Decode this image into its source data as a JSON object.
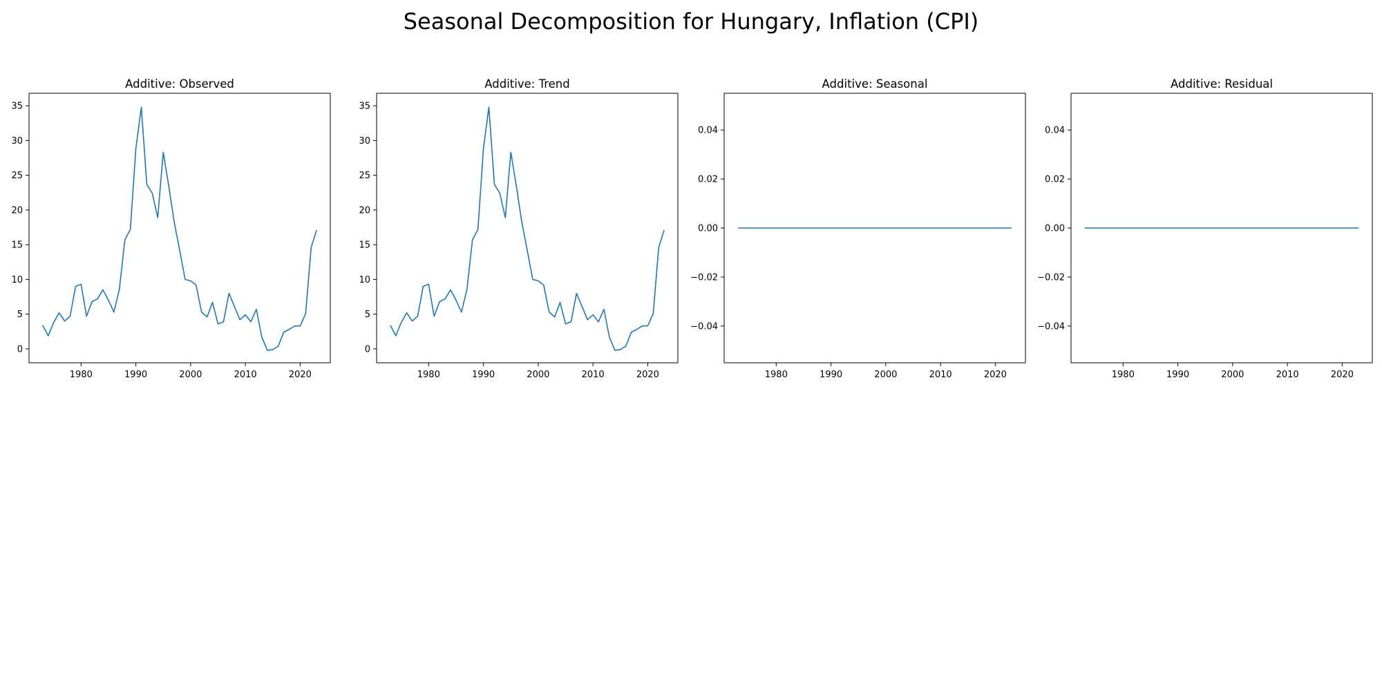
{
  "title": "Seasonal Decomposition for Hungary, Inflation (CPI)",
  "colors": {
    "line": "#1f77b4"
  },
  "chart_data": [
    {
      "type": "line",
      "title": "Additive: Observed",
      "xlim": [
        1970.5,
        2025.5
      ],
      "ylim": [
        -2,
        36.8
      ],
      "xticks": [
        1980,
        1990,
        2000,
        2010,
        2020
      ],
      "yticks": [
        0,
        5,
        10,
        15,
        20,
        25,
        30,
        35
      ],
      "ytick_labels": [
        "0",
        "5",
        "10",
        "15",
        "20",
        "25",
        "30",
        "35"
      ],
      "grid": false,
      "series": [
        {
          "x": [
            1973,
            1974,
            1975,
            1976,
            1977,
            1978,
            1979,
            1980,
            1981,
            1982,
            1983,
            1984,
            1985,
            1986,
            1987,
            1988,
            1989,
            1990,
            1991,
            1992,
            1993,
            1994,
            1995,
            1996,
            1997,
            1998,
            1999,
            2000,
            2001,
            2002,
            2003,
            2004,
            2005,
            2006,
            2007,
            2008,
            2009,
            2010,
            2011,
            2012,
            2013,
            2014,
            2015,
            2016,
            2017,
            2018,
            2019,
            2020,
            2021,
            2022,
            2023
          ],
          "y": [
            3.4,
            1.9,
            3.8,
            5.2,
            4.0,
            4.7,
            9.0,
            9.3,
            4.7,
            6.8,
            7.2,
            8.5,
            7.0,
            5.3,
            8.6,
            15.7,
            17.2,
            28.8,
            34.8,
            23.7,
            22.4,
            18.9,
            28.3,
            23.5,
            18.3,
            14.2,
            10.0,
            9.8,
            9.2,
            5.3,
            4.6,
            6.7,
            3.6,
            3.9,
            8.0,
            6.1,
            4.2,
            4.9,
            3.9,
            5.7,
            1.7,
            -0.2,
            -0.1,
            0.4,
            2.4,
            2.8,
            3.3,
            3.3,
            5.1,
            14.6,
            17.1
          ]
        }
      ]
    },
    {
      "type": "line",
      "title": "Additive: Trend",
      "xlim": [
        1970.5,
        2025.5
      ],
      "ylim": [
        -2,
        36.8
      ],
      "xticks": [
        1980,
        1990,
        2000,
        2010,
        2020
      ],
      "yticks": [
        0,
        5,
        10,
        15,
        20,
        25,
        30,
        35
      ],
      "ytick_labels": [
        "0",
        "5",
        "10",
        "15",
        "20",
        "25",
        "30",
        "35"
      ],
      "grid": false,
      "series": [
        {
          "x": [
            1973,
            1974,
            1975,
            1976,
            1977,
            1978,
            1979,
            1980,
            1981,
            1982,
            1983,
            1984,
            1985,
            1986,
            1987,
            1988,
            1989,
            1990,
            1991,
            1992,
            1993,
            1994,
            1995,
            1996,
            1997,
            1998,
            1999,
            2000,
            2001,
            2002,
            2003,
            2004,
            2005,
            2006,
            2007,
            2008,
            2009,
            2010,
            2011,
            2012,
            2013,
            2014,
            2015,
            2016,
            2017,
            2018,
            2019,
            2020,
            2021,
            2022,
            2023
          ],
          "y": [
            3.4,
            1.9,
            3.8,
            5.2,
            4.0,
            4.7,
            9.0,
            9.3,
            4.7,
            6.8,
            7.2,
            8.5,
            7.0,
            5.3,
            8.6,
            15.7,
            17.2,
            28.8,
            34.8,
            23.7,
            22.4,
            18.9,
            28.3,
            23.5,
            18.3,
            14.2,
            10.0,
            9.8,
            9.2,
            5.3,
            4.6,
            6.7,
            3.6,
            3.9,
            8.0,
            6.1,
            4.2,
            4.9,
            3.9,
            5.7,
            1.7,
            -0.2,
            -0.1,
            0.4,
            2.4,
            2.8,
            3.3,
            3.3,
            5.1,
            14.6,
            17.1
          ]
        }
      ]
    },
    {
      "type": "line",
      "title": "Additive: Seasonal",
      "xlim": [
        1970.5,
        2025.5
      ],
      "ylim": [
        -0.055,
        0.055
      ],
      "xticks": [
        1980,
        1990,
        2000,
        2010,
        2020
      ],
      "xtick_labels": [
        "1980",
        "1990",
        "2000",
        "2010",
        "2020"
      ],
      "yticks": [
        -0.04,
        -0.02,
        0.0,
        0.02,
        0.04
      ],
      "ytick_labels": [
        "−0.04",
        "−0.02",
        "0.00",
        "0.02",
        "0.04"
      ],
      "grid": false,
      "series": [
        {
          "x": [
            1973,
            2023
          ],
          "y": [
            0,
            0
          ]
        }
      ]
    },
    {
      "type": "line",
      "title": "Additive: Residual",
      "xlim": [
        1970.5,
        2025.5
      ],
      "ylim": [
        -0.055,
        0.055
      ],
      "xticks": [
        1980,
        1990,
        2000,
        2010,
        2020
      ],
      "xtick_labels": [
        "1980",
        "1990",
        "2000",
        "2010",
        "2020"
      ],
      "yticks": [
        -0.04,
        -0.02,
        0.0,
        0.02,
        0.04
      ],
      "ytick_labels": [
        "−0.04",
        "−0.02",
        "0.00",
        "0.02",
        "0.04"
      ],
      "grid": false,
      "series": [
        {
          "x": [
            1973,
            2023
          ],
          "y": [
            0,
            0
          ]
        }
      ]
    }
  ]
}
